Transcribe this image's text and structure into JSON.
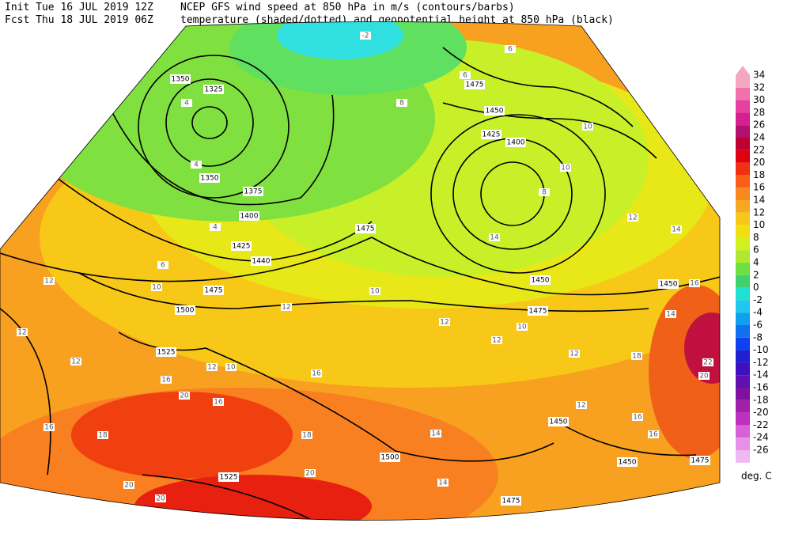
{
  "header": {
    "init": "Init  Tue 16 JUL 2019 12Z",
    "fcst": "Fcst Thu 18 JUL 2019 06Z",
    "title1": "NCEP GFS wind speed at 850 hPa in m/s (contours/barbs)",
    "title2": "temperature (shaded/dotted) and geopotential height at 850 hPa (black)"
  },
  "colorbar": {
    "levels": [
      34,
      32,
      30,
      28,
      26,
      24,
      22,
      20,
      18,
      16,
      14,
      12,
      10,
      8,
      6,
      4,
      2,
      0,
      -2,
      -4,
      -6,
      -8,
      -10,
      -12,
      -14,
      -16,
      -18,
      -20,
      -22,
      -24,
      -26
    ],
    "colors": [
      "#f4a8c0",
      "#f070b0",
      "#e8409f",
      "#d42090",
      "#b01070",
      "#c00030",
      "#e00010",
      "#f03010",
      "#f86018",
      "#f88820",
      "#f8a820",
      "#f8c818",
      "#f0e010",
      "#d0f020",
      "#b0e830",
      "#70e040",
      "#40d070",
      "#20e0d0",
      "#20c8f0",
      "#10a0f0",
      "#1070f0",
      "#1040f0",
      "#2020d0",
      "#4010c0",
      "#6010b0",
      "#8010a0",
      "#a020a8",
      "#c030c0",
      "#d860d8",
      "#e890e8",
      "#f0b8f0"
    ],
    "unit": "deg. C"
  },
  "map": {
    "height_labels": [
      1350,
      1325,
      1350,
      1375,
      1400,
      1425,
      1440,
      1475,
      1475,
      1500,
      1525,
      1475,
      1450,
      1425,
      1400,
      1450,
      1475,
      1450,
      1450,
      1450,
      1475,
      1500,
      1525,
      1475
    ],
    "temperature_labels": [
      -2,
      4,
      4,
      4,
      6,
      10,
      12,
      12,
      12,
      12,
      10,
      16,
      20,
      16,
      18,
      16,
      20,
      20,
      20,
      18,
      16,
      12,
      10,
      12,
      12,
      10,
      12,
      14,
      14,
      12,
      16,
      16,
      18,
      20,
      22,
      14,
      12,
      10,
      8,
      6,
      10,
      16,
      14,
      6,
      8,
      14
    ]
  }
}
